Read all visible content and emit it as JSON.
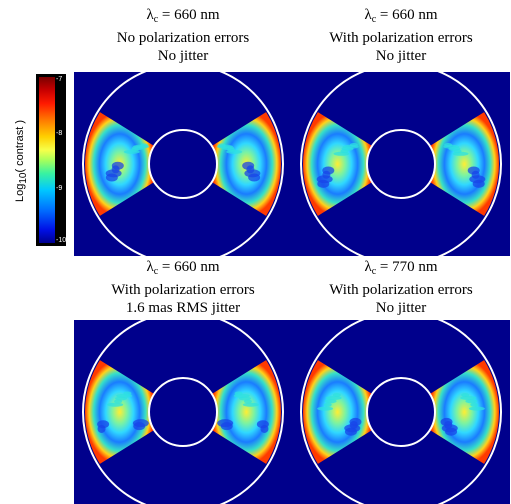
{
  "panels": [
    {
      "lambda": "λ",
      "lambda_sub": "c",
      "lambda_value": " = 660 nm",
      "line2": "No polarization errors",
      "line3": "No jitter"
    },
    {
      "lambda": "λ",
      "lambda_sub": "c",
      "lambda_value": " = 660 nm",
      "line2": "With polarization errors",
      "line3": "No jitter"
    },
    {
      "lambda": "λ",
      "lambda_sub": "c",
      "lambda_value": " = 660 nm",
      "line2": "With polarization errors",
      "line3": "1.6 mas RMS jitter"
    },
    {
      "lambda": "λ",
      "lambda_sub": "c",
      "lambda_value": " = 770 nm",
      "line2": "With polarization errors",
      "line3": "No jitter"
    }
  ],
  "colorbar": {
    "title": "Log",
    "title_sub": "10",
    "title_rest": "( contrast )",
    "ticks": [
      "-7",
      "-8",
      "-9",
      "-10"
    ],
    "colors": {
      "background": "#00008c",
      "ring": "#ffffff"
    }
  }
}
